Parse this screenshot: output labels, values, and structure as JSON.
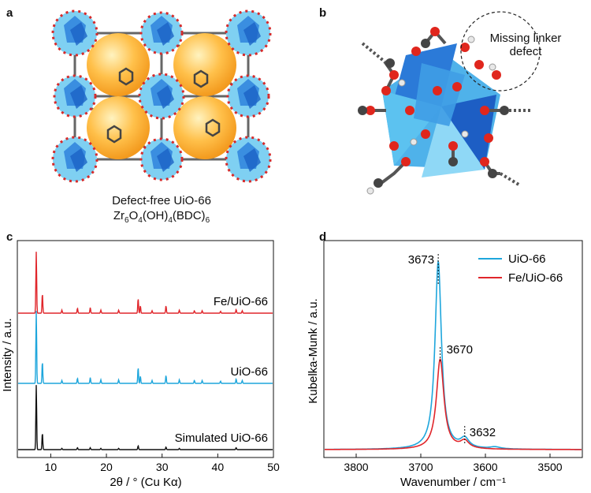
{
  "panel_a": {
    "letter": "a",
    "caption_line1": "Defect-free UiO-66",
    "formula": {
      "zr": "Zr",
      "zr_n": "6",
      "o": "O",
      "o_n": "4",
      "oh": "(OH)",
      "oh_n": "4",
      "bdc": "(BDC)",
      "bdc_n": "6"
    }
  },
  "panel_b": {
    "letter": "b",
    "annotation_line1": "Missing linker",
    "annotation_line2": "defect"
  },
  "chart_data": [
    {
      "type": "line",
      "panel": "c",
      "xlabel": "2θ / ° (Cu Kα)",
      "ylabel": "Intensity / a.u.",
      "xlim": [
        4,
        50
      ],
      "x_ticks": [
        10,
        20,
        30,
        40,
        50
      ],
      "x_ticklabels": [
        "10",
        "20",
        "30",
        "40",
        "50"
      ],
      "series": [
        {
          "name": "Fe/UiO-66",
          "color": "#e0262b",
          "peaks": [
            [
              7.4,
              1.0
            ],
            [
              8.5,
              0.32
            ],
            [
              12.0,
              0.05
            ],
            [
              14.8,
              0.08
            ],
            [
              17.1,
              0.09
            ],
            [
              19.0,
              0.05
            ],
            [
              22.2,
              0.05
            ],
            [
              25.7,
              0.24
            ],
            [
              26.1,
              0.12
            ],
            [
              28.2,
              0.04
            ],
            [
              30.7,
              0.12
            ],
            [
              33.1,
              0.05
            ],
            [
              35.8,
              0.04
            ],
            [
              37.2,
              0.04
            ],
            [
              40.5,
              0.03
            ],
            [
              43.3,
              0.06
            ],
            [
              44.4,
              0.04
            ]
          ]
        },
        {
          "name": "UiO-66",
          "color": "#1ea6dc",
          "peaks": [
            [
              7.4,
              1.0
            ],
            [
              8.5,
              0.3
            ],
            [
              12.0,
              0.04
            ],
            [
              14.8,
              0.07
            ],
            [
              17.1,
              0.08
            ],
            [
              19.0,
              0.05
            ],
            [
              22.2,
              0.05
            ],
            [
              25.7,
              0.22
            ],
            [
              26.1,
              0.1
            ],
            [
              28.2,
              0.04
            ],
            [
              30.7,
              0.11
            ],
            [
              33.1,
              0.05
            ],
            [
              35.8,
              0.04
            ],
            [
              37.2,
              0.04
            ],
            [
              40.5,
              0.03
            ],
            [
              43.3,
              0.06
            ],
            [
              44.4,
              0.04
            ]
          ]
        },
        {
          "name": "Simulated UiO-66",
          "color": "#111111",
          "peaks": [
            [
              7.4,
              1.0
            ],
            [
              8.5,
              0.26
            ],
            [
              12.0,
              0.02
            ],
            [
              14.8,
              0.03
            ],
            [
              17.1,
              0.03
            ],
            [
              19.0,
              0.02
            ],
            [
              22.2,
              0.02
            ],
            [
              25.7,
              0.06
            ],
            [
              30.7,
              0.04
            ],
            [
              33.1,
              0.02
            ],
            [
              43.3,
              0.03
            ]
          ]
        }
      ]
    },
    {
      "type": "line",
      "panel": "d",
      "xlabel": "Wavenumber / cm⁻¹",
      "ylabel": "Kubelka-Munk / a.u.",
      "xlim": [
        3850,
        3450
      ],
      "x_ticks": [
        3800,
        3700,
        3600,
        3500
      ],
      "x_ticklabels": [
        "3800",
        "3700",
        "3600",
        "3500"
      ],
      "annotations": [
        "3673",
        "3670",
        "3632"
      ],
      "annotation_x": [
        3673,
        3670,
        3632
      ],
      "series": [
        {
          "name": "UiO-66",
          "color": "#1ea6dc",
          "peaks": [
            [
              3673,
              1.0,
              6
            ],
            [
              3632,
              0.05,
              8
            ],
            [
              3585,
              0.01,
              10
            ]
          ]
        },
        {
          "name": "Fe/UiO-66",
          "color": "#e0262b",
          "peaks": [
            [
              3670,
              0.48,
              7
            ],
            [
              3632,
              0.04,
              8
            ]
          ]
        }
      ]
    }
  ]
}
